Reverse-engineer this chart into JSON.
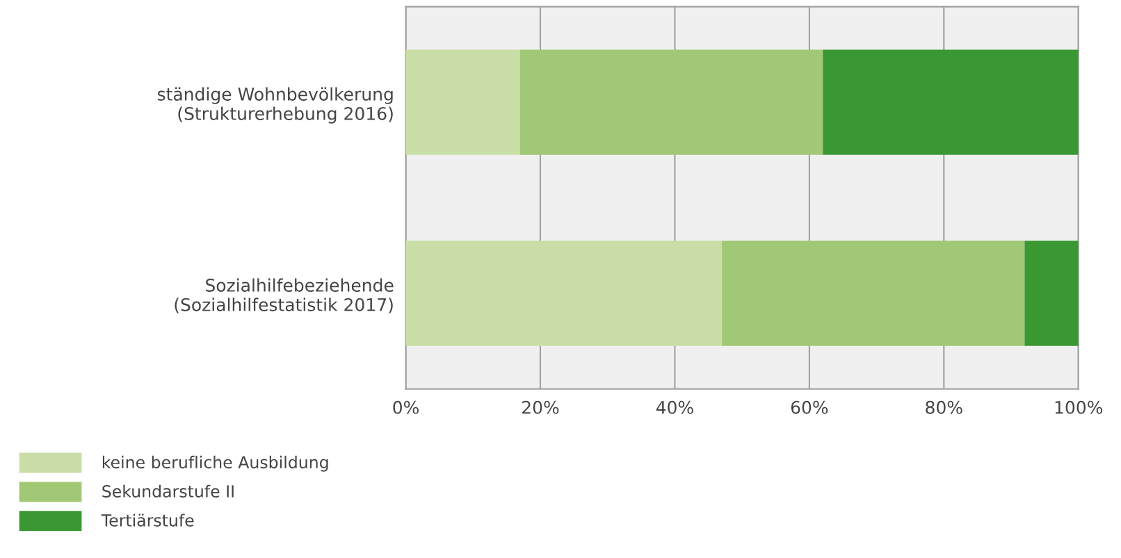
{
  "chart_data": {
    "type": "bar",
    "orientation": "horizontal",
    "stacked": true,
    "categories": [
      "ständige Wohnbevölkerung\n(Strukturerhebung 2016)",
      "Sozialhilfebeziehende\n(Sozialhilfestatistik 2017)"
    ],
    "series": [
      {
        "name": "keine berufliche Ausbildung",
        "color": "#c8dea6",
        "values": [
          17,
          47
        ]
      },
      {
        "name": "Sekundarstufe II",
        "color": "#a1c874",
        "values": [
          45,
          45
        ]
      },
      {
        "name": "Tertiärstufe",
        "color": "#3a9833",
        "values": [
          38,
          8
        ]
      }
    ],
    "xlim": [
      0,
      100
    ],
    "xticks": [
      {
        "value": 0,
        "label": "0%"
      },
      {
        "value": 20,
        "label": "20%"
      },
      {
        "value": 40,
        "label": "40%"
      },
      {
        "value": 60,
        "label": "60%"
      },
      {
        "value": 80,
        "label": "80%"
      },
      {
        "value": 100,
        "label": "100%"
      }
    ],
    "grid": "x",
    "legend": "bottom left"
  }
}
